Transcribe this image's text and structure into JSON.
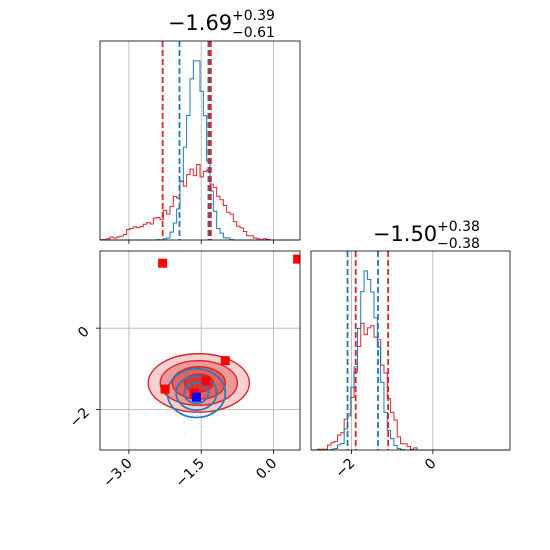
{
  "chart_data": {
    "type": "corner",
    "parameters": [
      {
        "title": {
          "main": "−1.69",
          "sup": "+0.39",
          "sub": "−0.61"
        },
        "xlim": [
          -3.6,
          0.55
        ],
        "ticks": [
          -3.0,
          -1.5,
          0.0
        ],
        "tick_labels": [
          "−3.0",
          "−1.5",
          "0.0"
        ],
        "quantile_lines": [
          {
            "color": "#d62728",
            "values": [
              -2.3,
              -1.3
            ]
          },
          {
            "color": "#1f77b4",
            "values": [
              -1.95,
              -1.35
            ]
          },
          {
            "color": "#d62728",
            "values": [
              -1.32
            ]
          }
        ]
      },
      {
        "title": {
          "main": "−1.50",
          "sup": "+0.38",
          "sub": "−0.38"
        },
        "xlim": [
          -3.0,
          1.9
        ],
        "ylim": [
          -3.0,
          1.9
        ],
        "ticks": [
          -2,
          0
        ],
        "tick_labels": [
          "−2",
          "0"
        ],
        "quantile_lines": [
          {
            "color": "#1f77b4",
            "values": [
              -2.1,
              -1.35
            ]
          },
          {
            "color": "#d62728",
            "values": [
              -1.9,
              -1.1
            ]
          }
        ]
      }
    ],
    "series": [
      {
        "color": "#1f77b4",
        "marginal_mean": [
          -1.6,
          -1.6
        ],
        "marginal_sd": [
          0.2,
          0.25
        ]
      },
      {
        "color": "#d62728",
        "marginal_mean": [
          -1.55,
          -1.55
        ],
        "marginal_sd": [
          0.45,
          0.35
        ]
      }
    ],
    "joint_markers": [
      {
        "color": "#ff0000",
        "points": [
          [
            -2.3,
            1.6
          ],
          [
            0.5,
            1.7
          ],
          [
            -1.0,
            -0.8
          ],
          [
            -1.4,
            -1.3
          ],
          [
            -1.65,
            -1.6
          ],
          [
            -2.25,
            -1.5
          ]
        ]
      },
      {
        "color": "#0000ff",
        "points": [
          [
            -1.6,
            -1.7
          ]
        ]
      }
    ],
    "grid": true,
    "legend": "none"
  }
}
